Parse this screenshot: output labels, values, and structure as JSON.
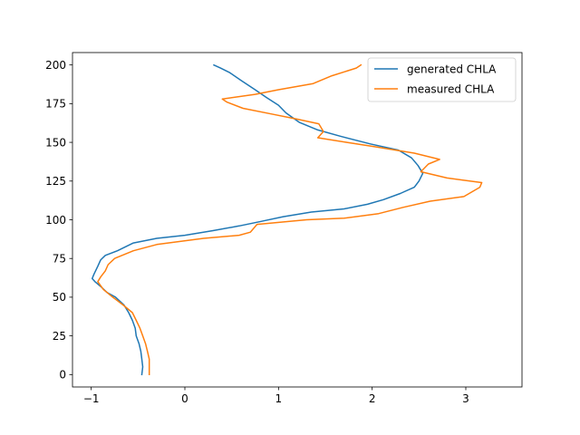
{
  "chart_data": {
    "type": "line",
    "title": "",
    "xlabel": "",
    "ylabel": "",
    "xlim": [
      -1.2,
      3.6
    ],
    "ylim": [
      208,
      -8
    ],
    "y_inverted": true,
    "xticks": [
      -1,
      0,
      1,
      2,
      3
    ],
    "yticks": [
      0,
      25,
      50,
      75,
      100,
      125,
      150,
      175,
      200
    ],
    "grid": false,
    "legend_position": "top-right",
    "series": [
      {
        "name": "generated CHLA",
        "color": "#1f77b4",
        "points": [
          [
            -0.46,
            0
          ],
          [
            -0.45,
            5
          ],
          [
            -0.46,
            10
          ],
          [
            -0.47,
            15
          ],
          [
            -0.49,
            20
          ],
          [
            -0.52,
            25
          ],
          [
            -0.53,
            30
          ],
          [
            -0.56,
            35
          ],
          [
            -0.6,
            40
          ],
          [
            -0.65,
            45
          ],
          [
            -0.74,
            50
          ],
          [
            -0.83,
            53
          ],
          [
            -0.9,
            57
          ],
          [
            -0.96,
            60
          ],
          [
            -0.99,
            62
          ],
          [
            -0.97,
            65
          ],
          [
            -0.93,
            70
          ],
          [
            -0.9,
            74
          ],
          [
            -0.85,
            77
          ],
          [
            -0.72,
            80
          ],
          [
            -0.55,
            85
          ],
          [
            -0.3,
            88
          ],
          [
            0.0,
            90
          ],
          [
            0.3,
            93
          ],
          [
            0.58,
            96
          ],
          [
            0.82,
            99
          ],
          [
            1.05,
            102
          ],
          [
            1.35,
            105
          ],
          [
            1.7,
            107
          ],
          [
            1.95,
            110
          ],
          [
            2.12,
            113
          ],
          [
            2.3,
            117
          ],
          [
            2.45,
            121
          ],
          [
            2.5,
            125
          ],
          [
            2.54,
            130
          ],
          [
            2.49,
            135
          ],
          [
            2.42,
            140
          ],
          [
            2.28,
            145
          ],
          [
            1.98,
            149
          ],
          [
            1.66,
            154
          ],
          [
            1.42,
            158
          ],
          [
            1.22,
            163
          ],
          [
            1.08,
            169
          ],
          [
            1.0,
            174
          ],
          [
            0.87,
            179
          ],
          [
            0.75,
            184
          ],
          [
            0.6,
            190
          ],
          [
            0.48,
            195
          ],
          [
            0.38,
            198
          ],
          [
            0.31,
            200
          ]
        ]
      },
      {
        "name": "measured CHLA",
        "color": "#ff7f0e",
        "points": [
          [
            -0.38,
            0
          ],
          [
            -0.38,
            5
          ],
          [
            -0.38,
            10
          ],
          [
            -0.4,
            15
          ],
          [
            -0.42,
            20
          ],
          [
            -0.45,
            25
          ],
          [
            -0.48,
            30
          ],
          [
            -0.52,
            35
          ],
          [
            -0.56,
            40
          ],
          [
            -0.66,
            45
          ],
          [
            -0.77,
            50
          ],
          [
            -0.87,
            55
          ],
          [
            -0.93,
            60
          ],
          [
            -0.9,
            63
          ],
          [
            -0.85,
            67
          ],
          [
            -0.82,
            71
          ],
          [
            -0.75,
            75
          ],
          [
            -0.55,
            80
          ],
          [
            -0.3,
            84
          ],
          [
            0.2,
            88
          ],
          [
            0.58,
            90
          ],
          [
            0.7,
            92
          ],
          [
            0.77,
            97
          ],
          [
            1.3,
            100
          ],
          [
            1.7,
            101
          ],
          [
            2.07,
            104
          ],
          [
            2.33,
            108
          ],
          [
            2.62,
            112
          ],
          [
            2.98,
            115
          ],
          [
            3.15,
            121
          ],
          [
            3.17,
            124
          ],
          [
            2.8,
            127
          ],
          [
            2.52,
            131
          ],
          [
            2.6,
            136
          ],
          [
            2.72,
            139
          ],
          [
            2.45,
            143
          ],
          [
            2.05,
            147
          ],
          [
            1.73,
            150
          ],
          [
            1.42,
            153
          ],
          [
            1.48,
            157
          ],
          [
            1.43,
            162
          ],
          [
            1.2,
            165
          ],
          [
            0.95,
            168
          ],
          [
            0.62,
            172
          ],
          [
            0.45,
            176
          ],
          [
            0.4,
            178
          ],
          [
            0.75,
            181
          ],
          [
            1.0,
            184
          ],
          [
            1.37,
            188
          ],
          [
            1.57,
            193
          ],
          [
            1.83,
            198
          ],
          [
            1.88,
            200
          ]
        ]
      }
    ]
  }
}
